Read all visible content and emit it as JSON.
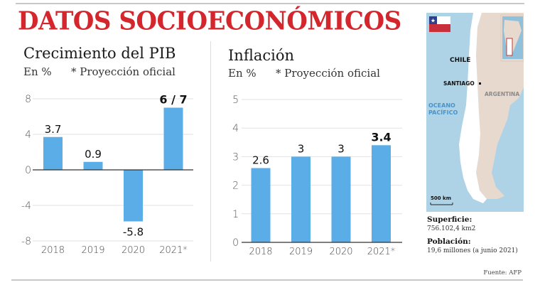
{
  "header": {
    "title": "DATOS SOCIOECONÓMICOS"
  },
  "chart_data": [
    {
      "type": "bar",
      "title": "Crecimiento del PIB",
      "unit_label": "En %",
      "note": "* Proyección oficial",
      "categories": [
        "2018",
        "2019",
        "2020",
        "2021*"
      ],
      "values": [
        3.7,
        0.9,
        -5.8,
        7
      ],
      "data_labels": [
        "3.7",
        "0.9",
        "-5.8",
        "6 / 7"
      ],
      "highlight_index": 3,
      "yticks": [
        "8",
        "4",
        "0",
        "-4",
        "-8"
      ],
      "ytick_values": [
        8,
        4,
        0,
        -4,
        -8
      ],
      "ylim": [
        -8,
        8
      ],
      "xlabel": "",
      "ylabel": "",
      "grid": true,
      "bar_color": "#5aade6"
    },
    {
      "type": "bar",
      "title": "Inflación",
      "unit_label": "En %",
      "note": "* Proyección oficial",
      "categories": [
        "2018",
        "2019",
        "2020",
        "2021*"
      ],
      "values": [
        2.6,
        3,
        3,
        3.4
      ],
      "data_labels": [
        "2.6",
        "3",
        "3",
        "3.4"
      ],
      "highlight_index": 3,
      "yticks": [
        "5",
        "4",
        "3",
        "2",
        "1",
        "0"
      ],
      "ytick_values": [
        5,
        4,
        3,
        2,
        1,
        0
      ],
      "ylim": [
        0,
        5
      ],
      "xlabel": "",
      "ylabel": "",
      "grid": true,
      "bar_color": "#5aade6"
    }
  ],
  "map": {
    "flag_icon": "chile-flag-icon",
    "labels": {
      "country": "CHILE",
      "capital": "SANTIAGO",
      "neighbor": "ARGENTINA",
      "ocean_line1": "OCEANO",
      "ocean_line2": "PACÍFICO",
      "scale": "500 km"
    },
    "colors": {
      "sea": "#aed3e6",
      "chile": "#ffffff",
      "neighbor": "#e8d9cf",
      "inset_frame": "#c0392b"
    }
  },
  "facts": {
    "area_label": "Superficie:",
    "area_value": "756.102,4 km2",
    "population_label": "Población:",
    "population_value": "19,6 millones (a junio 2021)"
  },
  "source": "Fuente: AFP",
  "colors": {
    "title": "#d4262d",
    "bar": "#5aade6"
  }
}
